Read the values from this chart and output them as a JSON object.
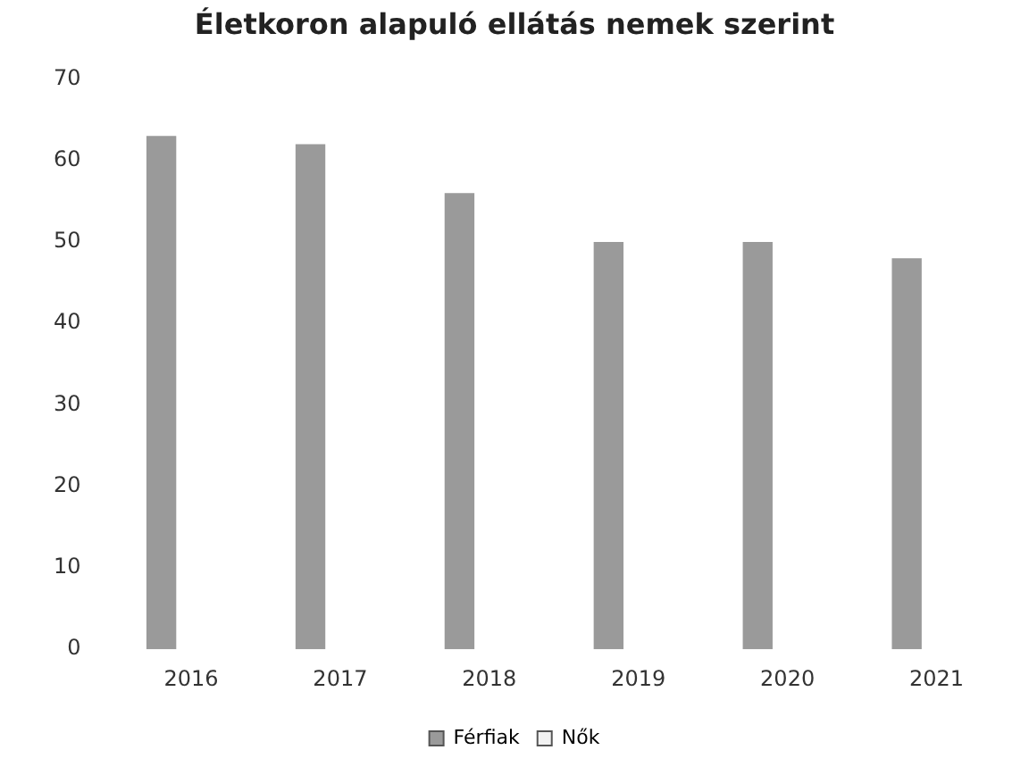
{
  "chart_data": {
    "type": "bar",
    "title": "Életkoron alapuló ellátás nemek szerint",
    "categories": [
      "2016",
      "2017",
      "2018",
      "2019",
      "2020",
      "2021"
    ],
    "series": [
      {
        "name": "Férfiak",
        "color": "#9a9a9a",
        "values": [
          63,
          62,
          56,
          50,
          50,
          48
        ]
      },
      {
        "name": "Nők",
        "color": "#f2f2f2",
        "values": [
          null,
          null,
          null,
          null,
          null,
          null
        ]
      }
    ],
    "ylim": [
      0,
      70
    ],
    "yticks": [
      0,
      10,
      20,
      30,
      40,
      50,
      60,
      70
    ],
    "grid": false,
    "legend": "bottom"
  }
}
